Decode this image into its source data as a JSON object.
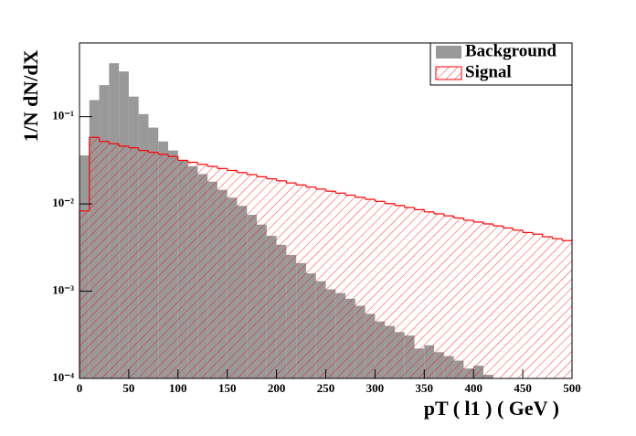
{
  "chart_data": {
    "type": "histogram",
    "x_label": "pT ( l1 )   ( GeV )",
    "y_label": "1/N dN/dX",
    "bins": [
      0,
      10,
      20,
      30,
      40,
      50,
      60,
      70,
      80,
      90,
      100,
      110,
      120,
      130,
      140,
      150,
      160,
      170,
      180,
      190,
      200,
      210,
      220,
      230,
      240,
      250,
      260,
      270,
      280,
      290,
      300,
      310,
      320,
      330,
      340,
      350,
      360,
      370,
      380,
      390,
      400,
      410,
      420,
      430,
      440,
      450,
      460,
      470,
      480,
      490,
      500
    ],
    "series": [
      {
        "name": "Background",
        "color": "#999999",
        "values": [
          0.036,
          0.155,
          0.23,
          0.41,
          0.33,
          0.17,
          0.107,
          0.075,
          0.052,
          0.041,
          0.032,
          0.027,
          0.022,
          0.018,
          0.0145,
          0.0118,
          0.0095,
          0.0075,
          0.0058,
          0.0043,
          0.0034,
          0.0026,
          0.0021,
          0.0016,
          0.0013,
          0.00105,
          0.00095,
          0.00082,
          0.00068,
          0.00055,
          0.00045,
          0.0004,
          0.00034,
          0.00031,
          0.00022,
          0.00024,
          0.0002,
          0.00018,
          0.00016,
          0.00013,
          0.00014,
          0.00011,
          0,
          0,
          0,
          0,
          0,
          0,
          0,
          0
        ]
      },
      {
        "name": "Signal",
        "color": "#ff0000",
        "values": [
          0.0083,
          0.058,
          0.052,
          0.049,
          0.046,
          0.044,
          0.041,
          0.039,
          0.037,
          0.035,
          0.0316,
          0.03,
          0.0284,
          0.0269,
          0.0255,
          0.0242,
          0.0229,
          0.0217,
          0.0205,
          0.0194,
          0.0184,
          0.0174,
          0.0165,
          0.0156,
          0.0148,
          0.014,
          0.0133,
          0.0126,
          0.0119,
          0.0113,
          0.0107,
          0.0101,
          0.0096,
          0.0091,
          0.0086,
          0.0081,
          0.0077,
          0.0073,
          0.0069,
          0.0065,
          0.0062,
          0.0059,
          0.0056,
          0.0053,
          0.005,
          0.0047,
          0.0045,
          0.0042,
          0.004,
          0.0038
        ]
      }
    ],
    "xlim": [
      0,
      500
    ],
    "xticks": [
      0,
      50,
      100,
      150,
      200,
      250,
      300,
      350,
      400,
      450,
      500
    ],
    "ylim": [
      0.0001,
      0.7
    ],
    "log_y": true,
    "yticks": [
      {
        "value": 0.0001,
        "label": "10⁻⁴"
      },
      {
        "value": 0.001,
        "label": "10⁻³"
      },
      {
        "value": 0.01,
        "label": "10⁻²"
      },
      {
        "value": 0.1,
        "label": "10⁻¹"
      }
    ],
    "legend": "upper right"
  }
}
